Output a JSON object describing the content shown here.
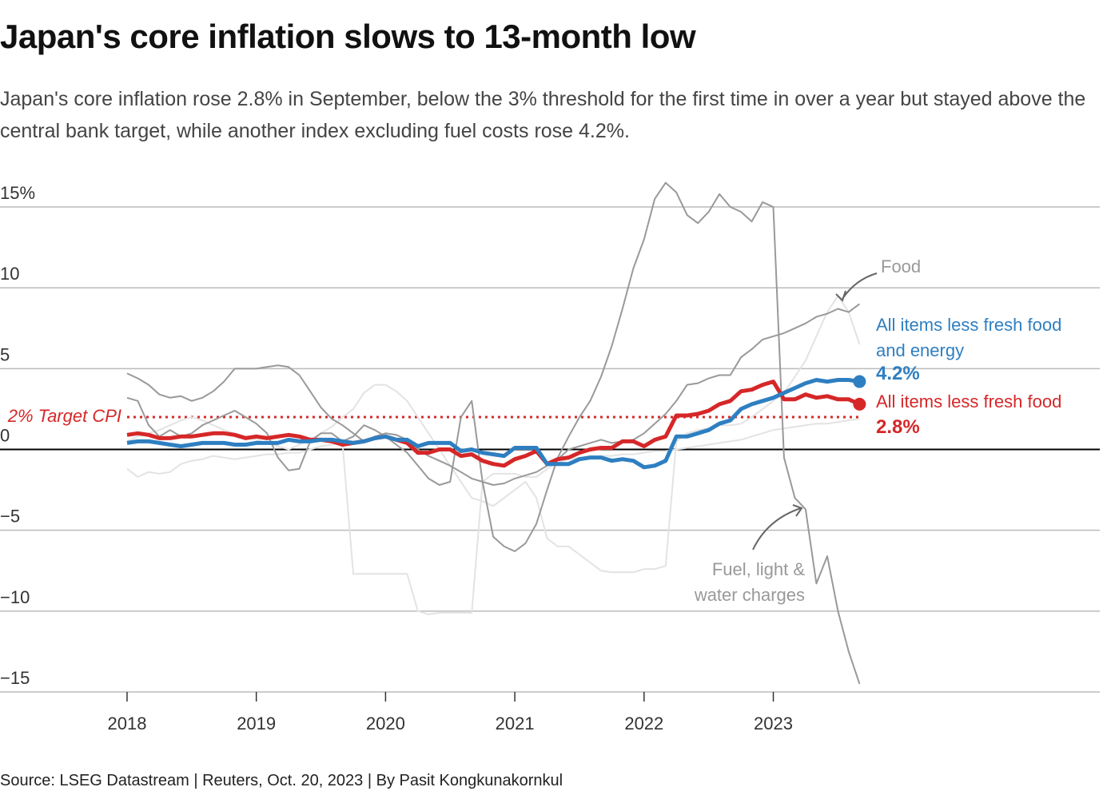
{
  "chart_data": {
    "type": "line",
    "title": "Japan's core inflation slows to 13-month low",
    "subtitle": "Japan's core inflation rose 2.8% in September, below the 3% threshold for the first time in over a year but stayed above the central bank target, while another index excluding fuel costs rose 4.2%.",
    "source": "Source: LSEG Datastream | Reuters, Oct. 20, 2023 | By Pasit Kongkunakornkul",
    "xlim": [
      2017.017,
      2025.526
    ],
    "xticks": [
      2018,
      2019,
      2020,
      2021,
      2022,
      2023
    ],
    "ylim": [
      -15,
      16.5
    ],
    "yticks": [
      {
        "value": 15,
        "label": "15%"
      },
      10,
      5,
      0,
      {
        "value": -5,
        "label": "−5"
      },
      {
        "value": -10,
        "label": "−10"
      },
      {
        "value": -15,
        "label": "−15"
      }
    ],
    "grid": true,
    "target": {
      "value": 2,
      "label": "2% Target CPI",
      "color": "#d62728"
    },
    "x": [
      2018,
      2018.083,
      2018.167,
      2018.25,
      2018.333,
      2018.417,
      2018.5,
      2018.583,
      2018.667,
      2018.75,
      2018.833,
      2018.917,
      2019,
      2019.083,
      2019.167,
      2019.25,
      2019.333,
      2019.417,
      2019.5,
      2019.583,
      2019.667,
      2019.75,
      2019.833,
      2019.917,
      2020,
      2020.083,
      2020.167,
      2020.25,
      2020.333,
      2020.417,
      2020.5,
      2020.583,
      2020.667,
      2020.75,
      2020.833,
      2020.917,
      2021,
      2021.083,
      2021.167,
      2021.25,
      2021.333,
      2021.417,
      2021.5,
      2021.583,
      2021.667,
      2021.75,
      2021.833,
      2021.917,
      2022,
      2022.083,
      2022.167,
      2022.25,
      2022.333,
      2022.417,
      2022.5,
      2022.583,
      2022.667,
      2022.75,
      2022.833,
      2022.917,
      2023,
      2023.083,
      2023.167,
      2023.25,
      2023.333,
      2023.417,
      2023.5,
      2023.583,
      2023.667
    ],
    "series": [
      {
        "color": "#e3e3e3",
        "values": [
          -1.2,
          -1.7,
          -1.4,
          -1.5,
          -1.4,
          -0.9,
          -0.7,
          -0.6,
          -0.4,
          -0.5,
          -0.6,
          -0.5,
          -0.4,
          -0.3,
          -0.3,
          -0.2,
          -0.2,
          0.0,
          0.2,
          0.3,
          0.4,
          -7.7,
          -7.7,
          -7.7,
          -7.7,
          -7.7,
          -7.7,
          -10.0,
          -10.2,
          -10.1,
          -10.1,
          -10.1,
          -10.1,
          -2.0,
          -1.5,
          -1.5,
          -1.5,
          -1.7,
          -1.7,
          -1.2,
          -0.8,
          -0.6,
          -0.5,
          -0.5,
          -0.4,
          -0.4,
          -0.3,
          -0.3,
          -0.2,
          -0.1,
          -0.1,
          0.0,
          0.1,
          0.2,
          0.3,
          0.4,
          0.5,
          0.6,
          0.8,
          1.0,
          1.2,
          1.3,
          1.4,
          1.5,
          1.6,
          1.6,
          1.7,
          1.8,
          1.9
        ]
      },
      {
        "color": "#e3e3e3",
        "values": [
          0.5,
          0.8,
          1.0,
          1.2,
          1.5,
          1.8,
          2.0,
          1.8,
          1.5,
          1.2,
          1.0,
          0.8,
          0.6,
          0.4,
          0.2,
          0.0,
          0.3,
          0.6,
          1.0,
          1.4,
          2.0,
          2.5,
          3.5,
          4.0,
          4.0,
          3.6,
          3.0,
          2.0,
          1.0,
          0.0,
          -1.0,
          -2.0,
          -3.0,
          -3.2,
          -3.5,
          -3.0,
          -2.5,
          -2.0,
          -3.0,
          -5.5,
          -6.0,
          -6.0,
          -6.5,
          -7.0,
          -7.5,
          -7.6,
          -7.6,
          -7.6,
          -7.4,
          -7.4,
          -7.2,
          0.5,
          1.0,
          1.2,
          1.3,
          1.5,
          1.5,
          1.6,
          2.0,
          2.5,
          3.0,
          3.5,
          4.5,
          5.5,
          7.0,
          8.5,
          9.5,
          8.5,
          6.5
        ]
      },
      {
        "name": "Fuel, light & water charges",
        "color": "#999999",
        "values": [
          3.2,
          3.0,
          1.5,
          0.8,
          1.2,
          0.8,
          1.0,
          1.5,
          1.8,
          2.1,
          2.4,
          2.0,
          1.6,
          1.0,
          -0.5,
          -1.3,
          -1.2,
          0.5,
          1.0,
          1.0,
          0.5,
          0.8,
          1.5,
          1.2,
          0.8,
          0.3,
          -0.2,
          -1.0,
          -1.8,
          -2.2,
          -2.0,
          2.0,
          3.0,
          -2.0,
          -5.4,
          -6.0,
          -6.3,
          -5.8,
          -4.6,
          -2.5,
          -0.5,
          0.8,
          2.0,
          3.0,
          4.5,
          6.4,
          8.7,
          11.2,
          13.0,
          15.5,
          16.5,
          15.9,
          14.5,
          14.0,
          14.7,
          15.8,
          15.0,
          14.7,
          14.1,
          15.3,
          15.0,
          -0.5,
          -3.0,
          -3.7,
          -8.3,
          -6.6,
          -10.0,
          -12.5,
          -14.5
        ]
      },
      {
        "name": "Food",
        "color": "#999999",
        "values": [
          4.7,
          4.4,
          4.0,
          3.4,
          3.2,
          3.3,
          3.0,
          3.2,
          3.6,
          4.2,
          5.0,
          5.0,
          5.0,
          5.1,
          5.2,
          5.1,
          4.6,
          3.6,
          2.6,
          1.9,
          1.5,
          1.0,
          0.5,
          0.8,
          1.0,
          0.9,
          0.6,
          0.0,
          -0.4,
          -0.7,
          -1.0,
          -1.4,
          -1.8,
          -2.0,
          -2.2,
          -2.1,
          -1.8,
          -1.6,
          -1.4,
          -1.0,
          -0.6,
          0.0,
          0.2,
          0.4,
          0.6,
          0.4,
          0.5,
          0.6,
          1.0,
          1.6,
          2.2,
          3.0,
          4.0,
          4.1,
          4.4,
          4.6,
          4.6,
          5.7,
          6.2,
          6.8,
          7.0,
          7.2,
          7.5,
          7.8,
          8.2,
          8.4,
          8.7,
          8.5,
          9.0
        ]
      },
      {
        "name": "All items less fresh food",
        "color": "#d62728",
        "values": [
          0.9,
          1.0,
          0.9,
          0.7,
          0.7,
          0.8,
          0.8,
          0.9,
          1.0,
          1.0,
          0.9,
          0.7,
          0.8,
          0.7,
          0.8,
          0.9,
          0.8,
          0.6,
          0.6,
          0.5,
          0.3,
          0.4,
          0.5,
          0.7,
          0.8,
          0.6,
          0.4,
          -0.2,
          -0.2,
          0.0,
          0.0,
          -0.4,
          -0.3,
          -0.7,
          -0.9,
          -1.0,
          -0.6,
          -0.4,
          -0.1,
          -0.9,
          -0.6,
          -0.5,
          -0.2,
          0.0,
          0.1,
          0.1,
          0.5,
          0.5,
          0.2,
          0.6,
          0.8,
          2.1,
          2.1,
          2.2,
          2.4,
          2.8,
          3.0,
          3.6,
          3.7,
          4.0,
          4.2,
          3.1,
          3.1,
          3.4,
          3.2,
          3.3,
          3.1,
          3.1,
          2.8
        ],
        "value_labels": [
          null,
          null,
          null,
          null,
          null,
          null,
          null,
          null,
          null,
          null,
          null,
          null,
          null,
          null,
          null,
          null,
          null,
          null,
          null,
          null,
          null,
          null,
          null,
          null,
          null,
          null,
          null,
          null,
          null,
          null,
          null,
          null,
          null,
          null,
          null,
          null,
          null,
          null,
          null,
          null,
          null,
          null,
          null,
          null,
          null,
          null,
          null,
          null,
          null,
          null,
          null,
          null,
          null,
          null,
          null,
          null,
          null,
          null,
          null,
          null,
          null,
          null,
          null,
          null,
          null,
          null,
          null,
          null,
          "2.8%"
        ]
      },
      {
        "name": "All items less fresh food and energy",
        "color": "#2e7fc1",
        "values": [
          0.4,
          0.5,
          0.5,
          0.4,
          0.3,
          0.2,
          0.3,
          0.4,
          0.4,
          0.4,
          0.3,
          0.3,
          0.4,
          0.4,
          0.4,
          0.6,
          0.5,
          0.5,
          0.6,
          0.6,
          0.5,
          0.4,
          0.5,
          0.7,
          0.8,
          0.6,
          0.6,
          0.2,
          0.4,
          0.4,
          0.4,
          -0.1,
          0.0,
          -0.2,
          -0.3,
          -0.4,
          0.1,
          0.1,
          0.1,
          -0.9,
          -0.9,
          -0.9,
          -0.6,
          -0.5,
          -0.5,
          -0.7,
          -0.6,
          -0.7,
          -1.1,
          -1.0,
          -0.7,
          0.8,
          0.8,
          1.0,
          1.2,
          1.6,
          1.8,
          2.5,
          2.8,
          3.0,
          3.2,
          3.5,
          3.8,
          4.1,
          4.3,
          4.2,
          4.3,
          4.3,
          4.2
        ],
        "value_labels": [
          null,
          null,
          null,
          null,
          null,
          null,
          null,
          null,
          null,
          null,
          null,
          null,
          null,
          null,
          null,
          null,
          null,
          null,
          null,
          null,
          null,
          null,
          null,
          null,
          null,
          null,
          null,
          null,
          null,
          null,
          null,
          null,
          null,
          null,
          null,
          null,
          null,
          null,
          null,
          null,
          null,
          null,
          null,
          null,
          null,
          null,
          null,
          null,
          null,
          null,
          null,
          null,
          null,
          null,
          null,
          null,
          null,
          null,
          null,
          null,
          null,
          null,
          null,
          null,
          null,
          null,
          null,
          null,
          "4.2%"
        ]
      }
    ]
  }
}
